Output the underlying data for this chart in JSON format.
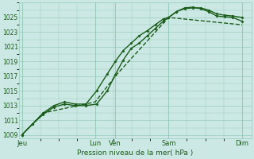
{
  "bg_color": "#cce8e4",
  "grid_color": "#99ccbb",
  "line_color": "#1a5c1a",
  "marker_color": "#1a5c1a",
  "text_color": "#1a5c1a",
  "ylabel_ticks": [
    1009,
    1011,
    1013,
    1015,
    1017,
    1019,
    1021,
    1023,
    1025
  ],
  "ylim": [
    1008.5,
    1027.0
  ],
  "xlabel": "Pression niveau de la mer( hPa )",
  "xtick_labels": [
    "Jeu",
    "Lun",
    "Ven",
    "Sam",
    "Dim"
  ],
  "xtick_positions": [
    0,
    55,
    70,
    110,
    165
  ],
  "xlim": [
    -2,
    172
  ],
  "series": [
    {
      "x": [
        0,
        8,
        16,
        24,
        32,
        40,
        48,
        56,
        64,
        70,
        76,
        82,
        88,
        94,
        100,
        106,
        110,
        116,
        122,
        128,
        134,
        140,
        146,
        152,
        158,
        165
      ],
      "y": [
        1009.0,
        1010.5,
        1011.8,
        1012.8,
        1013.2,
        1013.0,
        1013.0,
        1013.2,
        1015.0,
        1017.2,
        1019.2,
        1020.8,
        1021.5,
        1022.5,
        1023.5,
        1024.5,
        1025.0,
        1025.8,
        1026.2,
        1026.3,
        1026.3,
        1026.0,
        1025.5,
        1025.3,
        1025.2,
        1025.0
      ],
      "lw": 1.0
    },
    {
      "x": [
        0,
        8,
        16,
        24,
        32,
        40,
        48,
        56,
        64,
        70,
        76,
        82,
        88,
        94,
        100,
        106,
        110,
        116,
        122,
        128,
        134,
        140,
        146,
        152,
        158,
        165
      ],
      "y": [
        1009.0,
        1010.5,
        1012.0,
        1013.0,
        1013.5,
        1013.2,
        1013.2,
        1015.0,
        1017.3,
        1019.0,
        1020.5,
        1021.5,
        1022.5,
        1023.2,
        1024.0,
        1024.8,
        1025.0,
        1025.8,
        1026.3,
        1026.4,
        1026.2,
        1025.8,
        1025.2,
        1025.1,
        1025.0,
        1024.5
      ],
      "lw": 1.0
    },
    {
      "x": [
        0,
        16,
        55,
        70,
        110,
        165
      ],
      "y": [
        1009.0,
        1012.0,
        1013.5,
        1017.0,
        1025.0,
        1024.0
      ],
      "lw": 1.0
    }
  ]
}
